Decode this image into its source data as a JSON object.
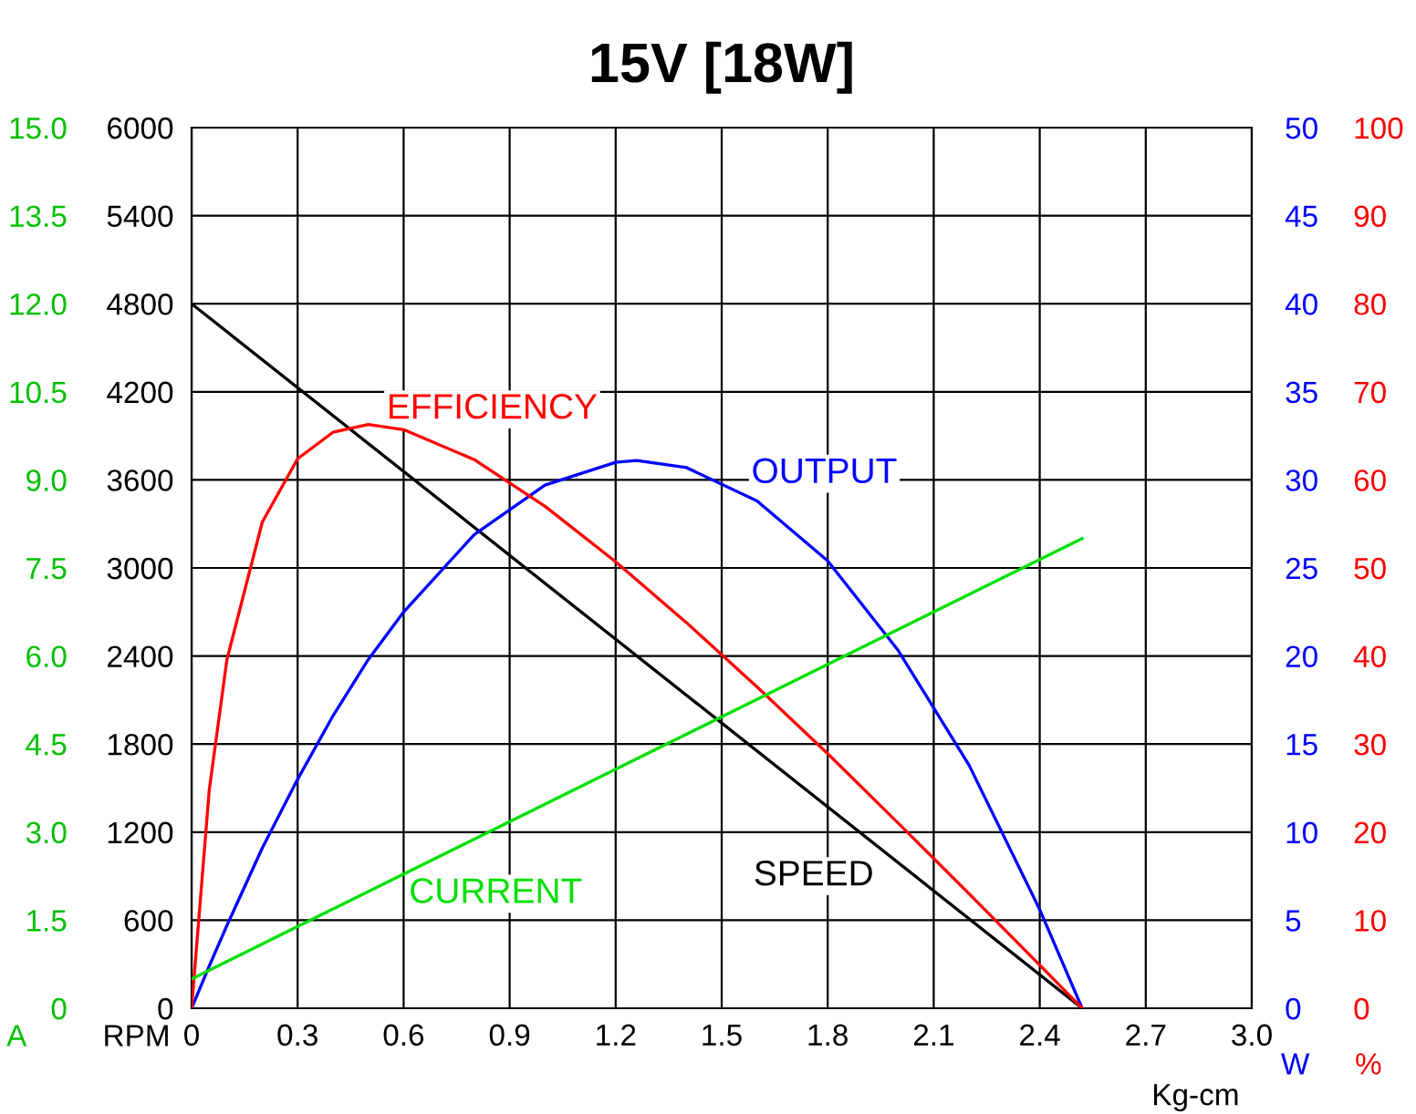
{
  "chart_data": [
    {
      "type": "line",
      "title": "15V [18W]",
      "xlabel": "Kg-cm",
      "ylabel": "RPM",
      "y2label": "W",
      "y3label": "%",
      "grid": true,
      "legend": false,
      "marker": "none",
      "line_style": "solid",
      "xlim": [
        0,
        3.0
      ],
      "xticks": [
        0,
        0.3,
        0.6,
        0.9,
        1.2,
        1.5,
        1.8,
        2.1,
        2.4,
        2.7,
        {
          "value": 3.0,
          "label": "3.0"
        }
      ],
      "ylim": [
        0,
        6000
      ],
      "yticks": [
        0,
        600,
        1200,
        1800,
        2400,
        3000,
        3600,
        4200,
        4800,
        5400,
        6000
      ],
      "y2lim": [
        0,
        50
      ],
      "y2ticks": [
        0,
        5,
        10,
        15,
        20,
        25,
        30,
        35,
        40,
        45,
        50
      ],
      "y3lim": [
        0,
        100
      ],
      "y3ticks": [
        0,
        10,
        20,
        30,
        40,
        50,
        60,
        70,
        80,
        90,
        100
      ],
      "series": [
        {
          "name": "SPEED",
          "color": "#000000",
          "x": [
            0,
            2.52
          ],
          "values": [
            4800,
            0
          ]
        },
        {
          "name": "OUTPUT",
          "color": "#0000ff",
          "axis": "y2",
          "x": [
            0,
            0.05,
            0.1,
            0.2,
            0.3,
            0.4,
            0.5,
            0.6,
            0.8,
            1.0,
            1.2,
            1.26,
            1.4,
            1.6,
            1.8,
            2.0,
            2.2,
            2.4,
            2.52
          ],
          "values": [
            0,
            2.4,
            4.7,
            9.1,
            13.0,
            16.6,
            19.8,
            22.5,
            26.9,
            29.7,
            31.0,
            31.1,
            30.7,
            28.8,
            25.4,
            20.3,
            13.8,
            5.6,
            0
          ]
        },
        {
          "name": "EFFICIENCY",
          "color": "#ff0000",
          "axis": "y3",
          "x": [
            0,
            0.05,
            0.1,
            0.2,
            0.3,
            0.4,
            0.5,
            0.6,
            0.8,
            1.0,
            1.2,
            1.4,
            1.6,
            1.8,
            2.0,
            2.2,
            2.4,
            2.52
          ],
          "values": [
            0,
            24.8,
            39.6,
            55.2,
            62.4,
            65.4,
            66.3,
            65.7,
            62.3,
            57.0,
            50.7,
            43.8,
            36.5,
            28.9,
            21.0,
            13.0,
            4.9,
            0
          ]
        }
      ]
    },
    {
      "type": "line",
      "ylabel": "A",
      "tick_labels": "y",
      "marker": "none",
      "line_style": "solid",
      "xlim": [
        0,
        3.0
      ],
      "ylim": [
        0,
        15
      ],
      "yticks": [
        0,
        1.5,
        {
          "value": 3,
          "label": "3.0"
        },
        4.5,
        {
          "value": 6,
          "label": "6.0"
        },
        7.5,
        {
          "value": 9,
          "label": "9.0"
        },
        10.5,
        {
          "value": 12,
          "label": "12.0"
        },
        13.5,
        {
          "value": 15,
          "label": "15.0"
        }
      ],
      "series": [
        {
          "name": "CURRENT",
          "color": "#00e000",
          "x": [
            0,
            2.52
          ],
          "values": [
            0.5,
            8.0
          ]
        }
      ]
    }
  ]
}
